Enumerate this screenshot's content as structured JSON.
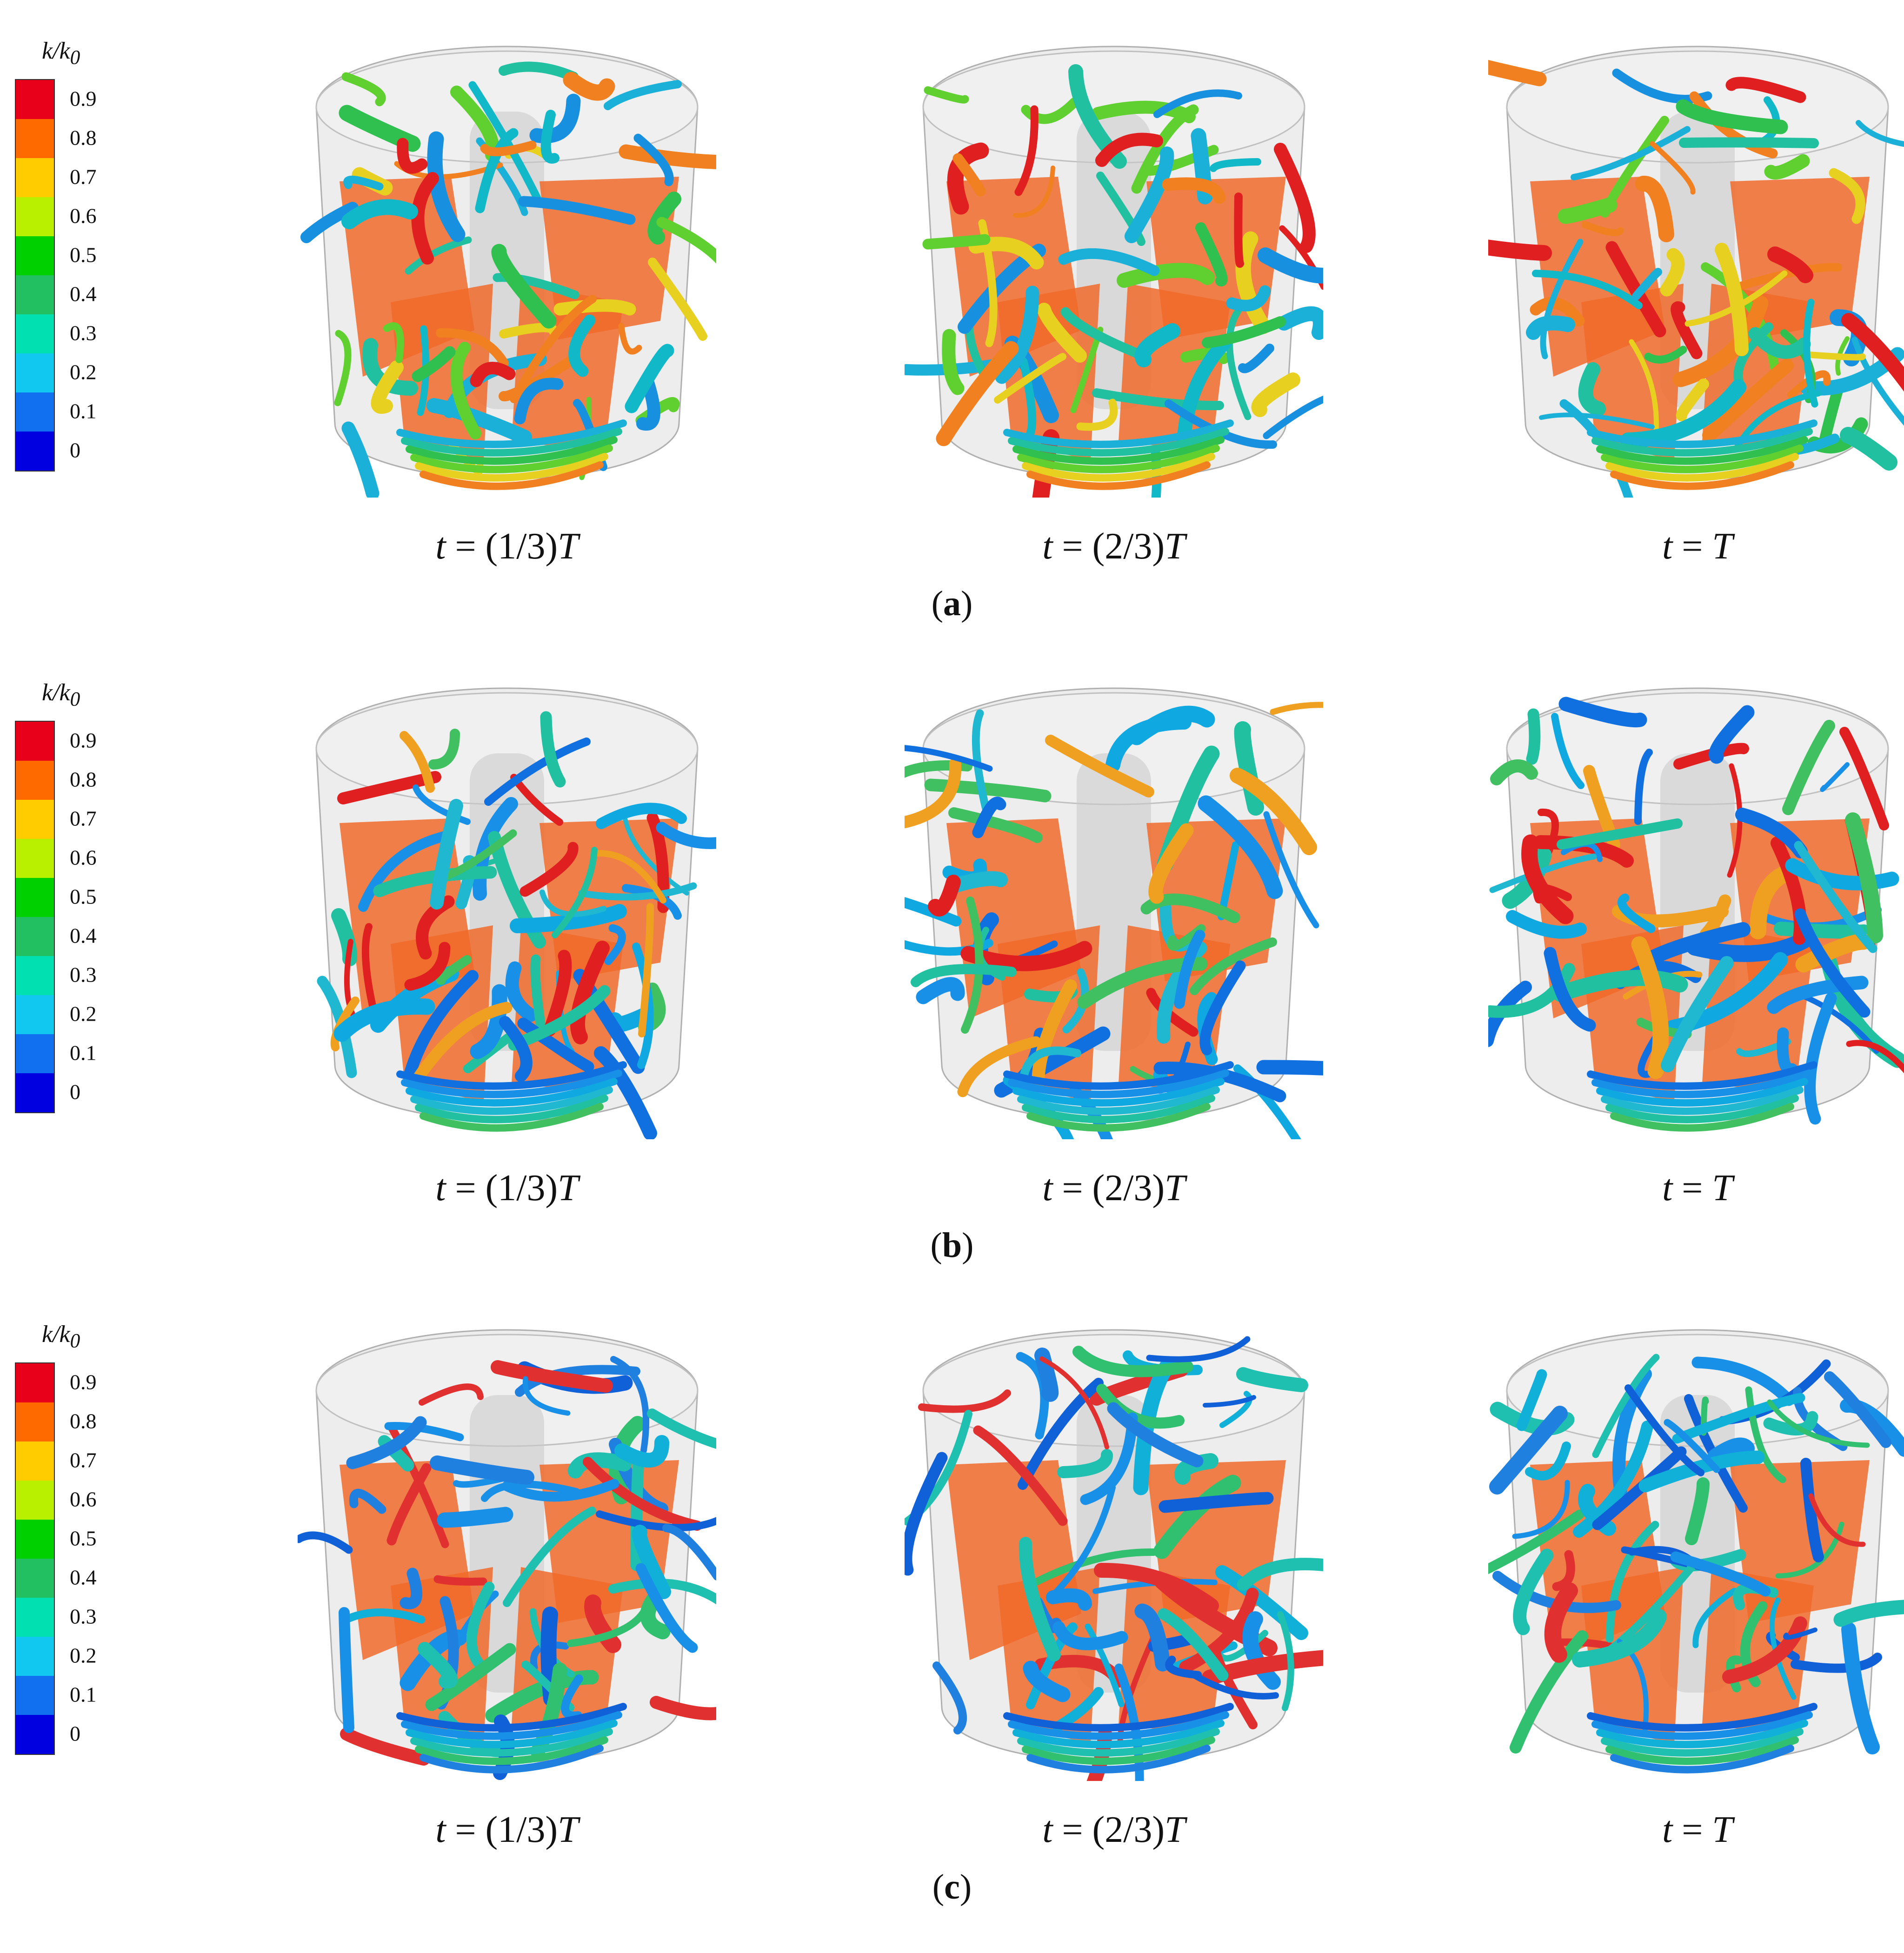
{
  "colorbar": {
    "title_k": "k",
    "title_sub": "0",
    "ticks": [
      "0.9",
      "0.8",
      "0.7",
      "0.6",
      "0.5",
      "0.4",
      "0.3",
      "0.2",
      "0.1",
      "0"
    ],
    "colors": [
      "#e8001a",
      "#ff6a00",
      "#ffcc00",
      "#b8f000",
      "#00d000",
      "#22c060",
      "#00e0b0",
      "#10c8f0",
      "#1070f0",
      "#0000e0"
    ]
  },
  "rows": [
    {
      "sublabel": "a",
      "times": [
        "t = (1/3)T",
        "t = (2/3)T",
        "t = T"
      ]
    },
    {
      "sublabel": "b",
      "times": [
        "t = (1/3)T",
        "t = (2/3)T",
        "t = T"
      ]
    },
    {
      "sublabel": "c",
      "times": [
        "t = (1/3)T",
        "t = (2/3)T",
        "t = T"
      ]
    }
  ],
  "palette": {
    "blade": "#f06a2a",
    "cylinder": "#d7d7d7"
  }
}
